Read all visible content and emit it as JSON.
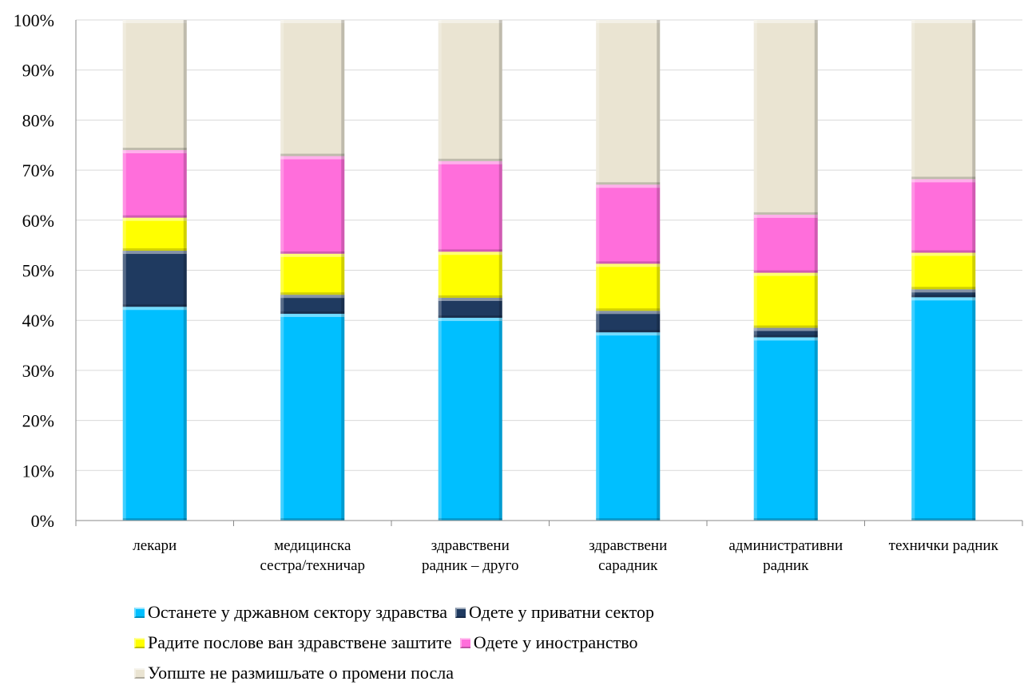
{
  "chart_data": {
    "type": "bar",
    "stacked": true,
    "percent": true,
    "categories": [
      [
        "лекари"
      ],
      [
        "медицинска",
        "сестра/техничар"
      ],
      [
        "здравствени",
        "радник – друго"
      ],
      [
        "здравствени",
        "сарадник"
      ],
      [
        "административни",
        "радник"
      ],
      [
        "технички радник"
      ]
    ],
    "series": [
      {
        "name": "Останете у државном сектору здравства",
        "color": "#00BFFF",
        "values": [
          42.7,
          41.3,
          40.5,
          37.6,
          36.6,
          44.6
        ]
      },
      {
        "name": "Одете у приватни сектор",
        "color": "#1F3A60",
        "values": [
          11.2,
          3.8,
          4.0,
          4.3,
          1.9,
          1.6
        ]
      },
      {
        "name": "Радите послове ван здравствене заштите",
        "color": "#FFFF00",
        "values": [
          6.6,
          8.2,
          9.2,
          9.4,
          11.0,
          7.3
        ]
      },
      {
        "name": "Одете у иностранство",
        "color": "#FF6EDB",
        "values": [
          13.5,
          19.5,
          18.1,
          15.8,
          11.6,
          14.7
        ]
      },
      {
        "name": "Уопште не размишљате о промени посла",
        "color": "#EAE4D2",
        "values": [
          26.0,
          27.2,
          28.2,
          32.9,
          38.9,
          31.8
        ]
      }
    ],
    "y_ticks": [
      "0%",
      "10%",
      "20%",
      "30%",
      "40%",
      "50%",
      "60%",
      "70%",
      "80%",
      "90%",
      "100%"
    ],
    "ylim": [
      0,
      100
    ],
    "grid": true,
    "legend_position": "bottom"
  }
}
